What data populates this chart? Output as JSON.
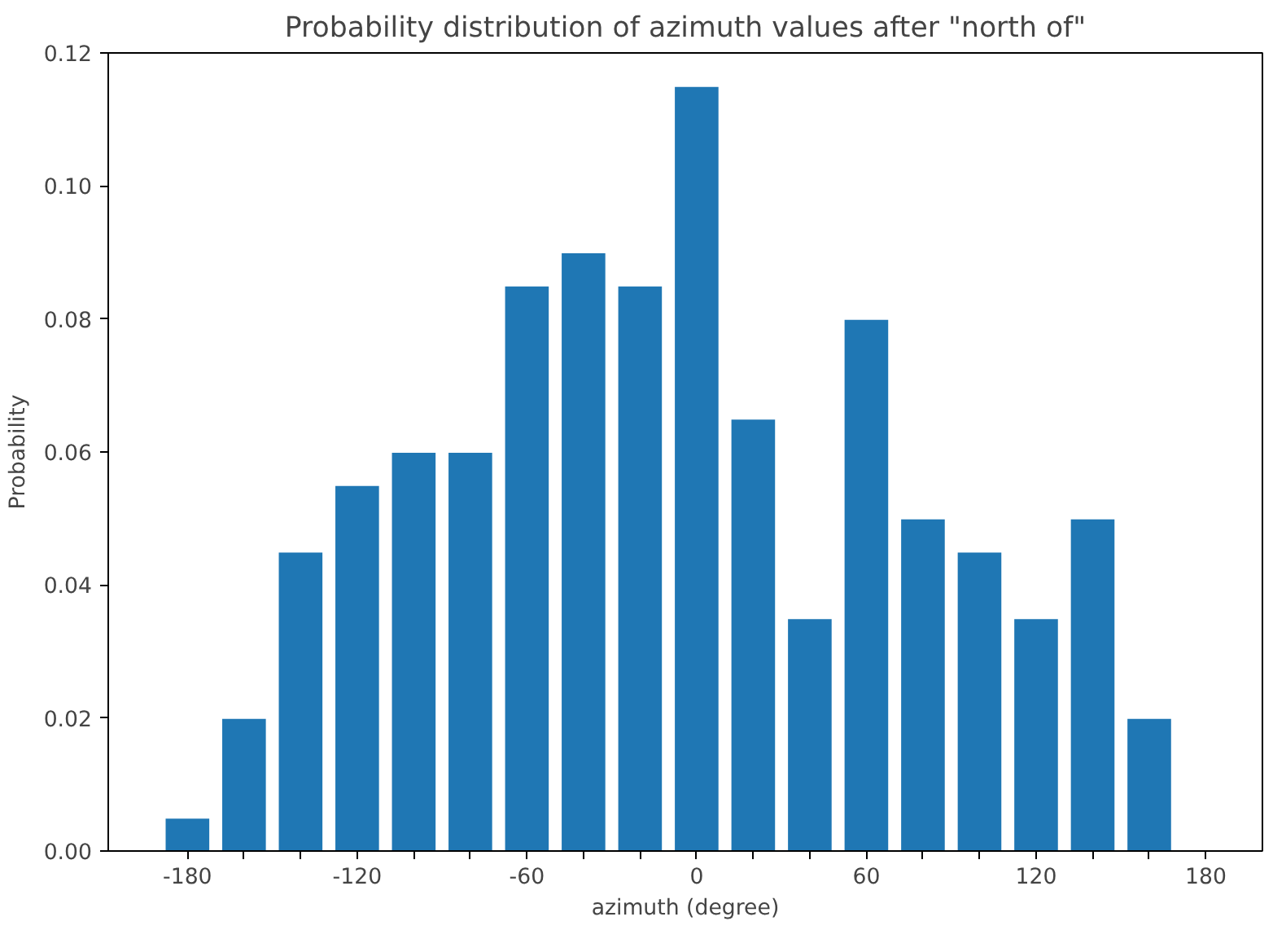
{
  "chart_data": {
    "type": "bar",
    "title": "Probability distribution of azimuth values after \"north of\"",
    "xlabel": "azimuth (degree)",
    "ylabel": "Probability",
    "x": [
      -180,
      -160,
      -140,
      -120,
      -100,
      -80,
      -60,
      -40,
      -20,
      0,
      20,
      40,
      60,
      80,
      100,
      120,
      140,
      160
    ],
    "values": [
      0.005,
      0.02,
      0.045,
      0.055,
      0.06,
      0.06,
      0.085,
      0.09,
      0.085,
      0.115,
      0.065,
      0.035,
      0.08,
      0.05,
      0.045,
      0.035,
      0.05,
      0.02
    ],
    "color": "#1f77b4",
    "xlim": [
      -208,
      200
    ],
    "ylim": [
      0,
      0.12
    ],
    "xticks": [
      -180,
      {
        "value": -160,
        "label": null
      },
      {
        "value": -140,
        "label": null
      },
      -120,
      {
        "value": -100,
        "label": null
      },
      {
        "value": -80,
        "label": null
      },
      -60,
      {
        "value": -40,
        "label": null
      },
      {
        "value": -20,
        "label": null
      },
      0,
      {
        "value": 20,
        "label": null
      },
      {
        "value": 40,
        "label": null
      },
      60,
      {
        "value": 80,
        "label": null
      },
      {
        "value": 100,
        "label": null
      },
      120,
      {
        "value": 140,
        "label": null
      },
      {
        "value": 160,
        "label": null
      },
      180
    ],
    "yticks": [
      {
        "value": 0,
        "label": "0.00"
      },
      {
        "value": 0.02,
        "label": "0.02"
      },
      {
        "value": 0.04,
        "label": "0.04"
      },
      {
        "value": 0.06,
        "label": "0.06"
      },
      {
        "value": 0.08,
        "label": "0.08"
      },
      {
        "value": 0.1,
        "label": "0.10"
      },
      {
        "value": 0.12,
        "label": "0.12"
      }
    ],
    "grid": false
  }
}
